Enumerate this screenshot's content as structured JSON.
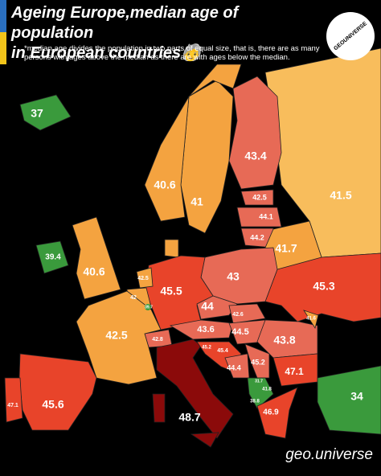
{
  "header": {
    "title_lines": [
      "Ageing Europe,median age of population",
      "in European countries🧓"
    ],
    "note": "*median age divides the population in two parts of equal size, that is, there are as many persons with ages above the median as there are with ages below the median."
  },
  "logo": "GEOUNIVERSE",
  "regions": [
    {
      "value": 37
    },
    {
      "value": 40.6
    },
    {
      "value": 41
    },
    {
      "value": 43.4
    },
    {
      "value": 41.5
    },
    {
      "value": 42.5
    },
    {
      "value": 44.1
    },
    {
      "value": 44.2
    },
    {
      "value": 41.7
    },
    {
      "value": 39.4
    },
    {
      "value": 40.6
    },
    {
      "value": 42.5
    },
    {
      "value": 42
    },
    {
      "value": 39.7
    },
    {
      "value": 45.5
    },
    {
      "value": 43
    },
    {
      "value": 45.3
    },
    {
      "value": 44
    },
    {
      "value": 42.6
    },
    {
      "value": 43.6
    },
    {
      "value": 44.5
    },
    {
      "value": 43.8
    },
    {
      "value": 41.6
    },
    {
      "value": 42.5
    },
    {
      "value": 42.8
    },
    {
      "value": 45.2
    },
    {
      "value": 45.4
    },
    {
      "value": 44.4
    },
    {
      "value": 45.2
    },
    {
      "value": 47.1
    },
    {
      "value": 31.7
    },
    {
      "value": 41.8
    },
    {
      "value": 38.8
    },
    {
      "value": 46.9
    },
    {
      "value": 34
    },
    {
      "value": 48.7
    },
    {
      "value": 45.6
    },
    {
      "value": 47.1
    }
  ],
  "footer": "geo.universe"
}
